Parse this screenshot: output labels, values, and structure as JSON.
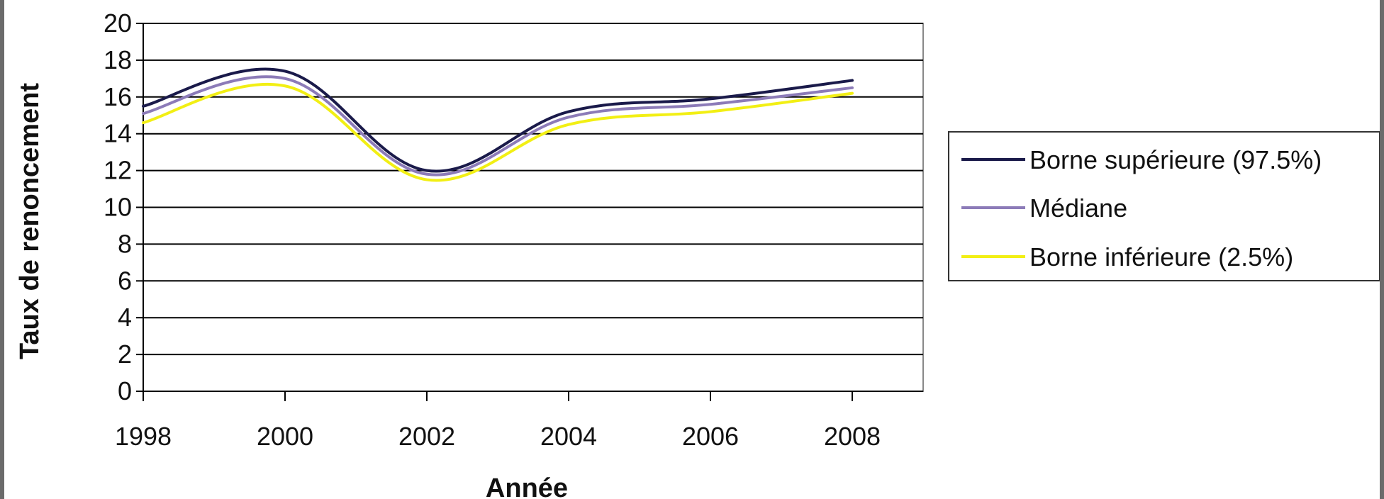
{
  "chart_data": {
    "type": "line",
    "xlabel": "Année",
    "ylabel": "Taux de renoncement",
    "xlim": [
      1998,
      2009
    ],
    "ylim": [
      0,
      20
    ],
    "x_ticks": [
      1998,
      2000,
      2002,
      2004,
      2006,
      2008
    ],
    "y_ticks": [
      0,
      2,
      4,
      6,
      8,
      10,
      12,
      14,
      16,
      18,
      20
    ],
    "grid": "horizontal",
    "legend_position": "right",
    "x": [
      1998,
      2000,
      2002,
      2004,
      2006,
      2008
    ],
    "series": [
      {
        "name": "Borne supérieure (97.5%)",
        "color": "#1a1a4a",
        "values": [
          15.5,
          17.4,
          12.0,
          15.2,
          15.9,
          16.9
        ]
      },
      {
        "name": "Médiane",
        "color": "#8c7bb8",
        "values": [
          15.1,
          17.0,
          11.8,
          14.9,
          15.6,
          16.5
        ]
      },
      {
        "name": "Borne inférieure (2.5%)",
        "color": "#f2ef14",
        "values": [
          14.6,
          16.6,
          11.5,
          14.5,
          15.2,
          16.2
        ]
      }
    ]
  }
}
